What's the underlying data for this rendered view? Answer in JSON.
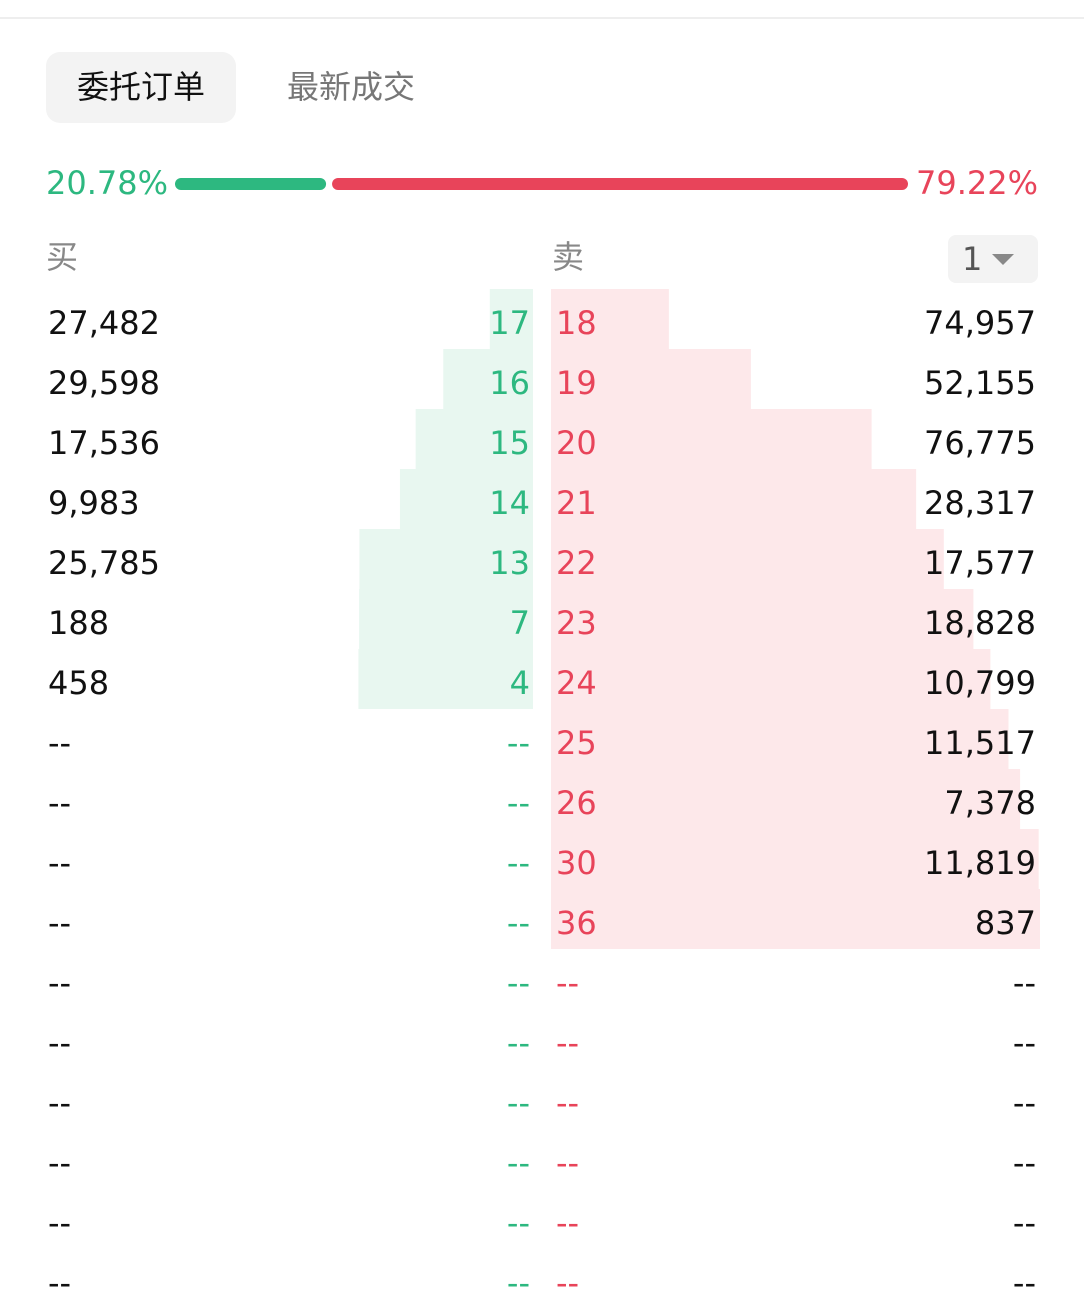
{
  "tabs": {
    "active": "委托订单",
    "other": "最新成交"
  },
  "ratio": {
    "buy": {
      "value": 20.78,
      "label": "20.78%"
    },
    "sell": {
      "value": 79.22,
      "label": "79.22%"
    }
  },
  "headers": {
    "buy": "买",
    "sell": "卖",
    "depth": "1"
  },
  "buy": [
    {
      "qty": {
        "value": 27482,
        "label": "27,482"
      },
      "price": 17
    },
    {
      "qty": {
        "value": 29598,
        "label": "29,598"
      },
      "price": 16
    },
    {
      "qty": {
        "value": 17536,
        "label": "17,536"
      },
      "price": 15
    },
    {
      "qty": {
        "value": 9983,
        "label": "9,983"
      },
      "price": 14
    },
    {
      "qty": {
        "value": 25785,
        "label": "25,785"
      },
      "price": 13
    },
    {
      "qty": 188,
      "price": 7
    },
    {
      "qty": 458,
      "price": 4
    },
    {
      "qty": "--",
      "price": "--"
    },
    {
      "qty": "--",
      "price": "--"
    },
    {
      "qty": "--",
      "price": "--"
    },
    {
      "qty": "--",
      "price": "--"
    },
    {
      "qty": "--",
      "price": "--"
    },
    {
      "qty": "--",
      "price": "--"
    },
    {
      "qty": "--",
      "price": "--"
    },
    {
      "qty": "--",
      "price": "--"
    },
    {
      "qty": "--",
      "price": "--"
    },
    {
      "qty": "--",
      "price": "--"
    }
  ],
  "sell": [
    {
      "qty": {
        "value": 74957,
        "label": "74,957"
      },
      "price": 18
    },
    {
      "qty": {
        "value": 52155,
        "label": "52,155"
      },
      "price": 19
    },
    {
      "qty": {
        "value": 76775,
        "label": "76,775"
      },
      "price": 20
    },
    {
      "qty": {
        "value": 28317,
        "label": "28,317"
      },
      "price": 21
    },
    {
      "qty": {
        "value": 17577,
        "label": "17,577"
      },
      "price": 22
    },
    {
      "qty": {
        "value": 18828,
        "label": "18,828"
      },
      "price": 23
    },
    {
      "qty": {
        "value": 10799,
        "label": "10,799"
      },
      "price": 24
    },
    {
      "qty": {
        "value": 11517,
        "label": "11,517"
      },
      "price": 25
    },
    {
      "qty": {
        "value": 7378,
        "label": "7,378"
      },
      "price": 26
    },
    {
      "qty": {
        "value": 11819,
        "label": "11,819"
      },
      "price": 30
    },
    {
      "qty": 837,
      "price": 36
    },
    {
      "qty": "--",
      "price": "--"
    },
    {
      "qty": "--",
      "price": "--"
    },
    {
      "qty": "--",
      "price": "--"
    },
    {
      "qty": "--",
      "price": "--"
    },
    {
      "qty": "--",
      "price": "--"
    },
    {
      "qty": "--",
      "price": "--"
    }
  ]
}
